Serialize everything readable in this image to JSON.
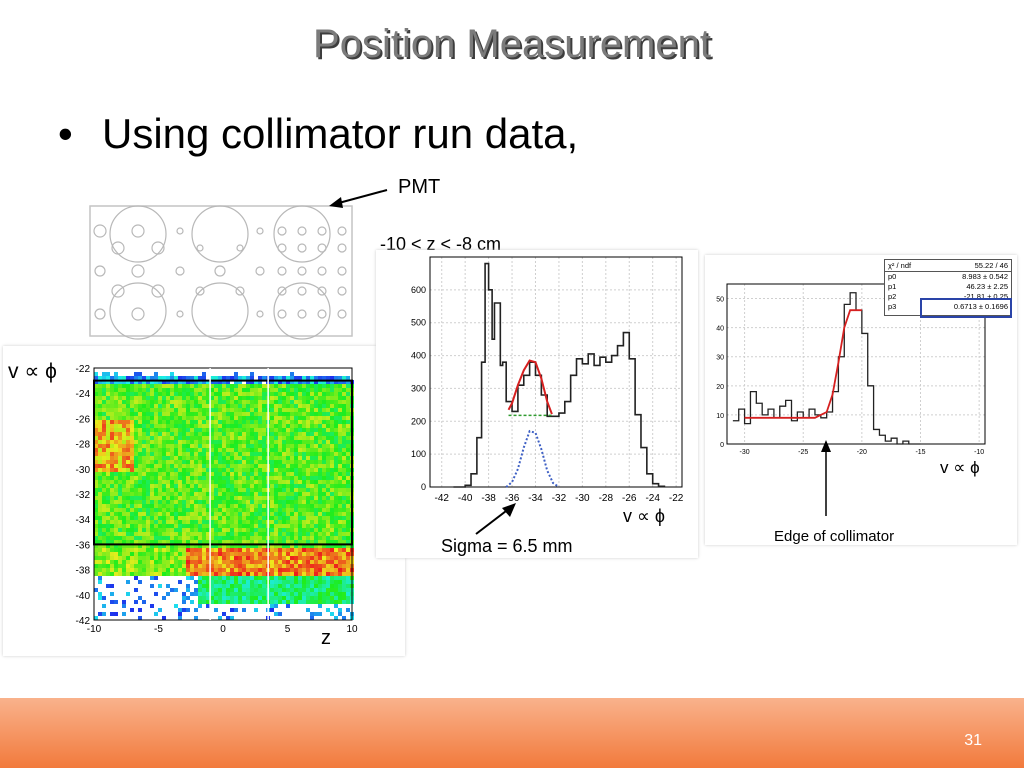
{
  "slide": {
    "title": "Position Measurement",
    "bullet": "Using collimator run data,",
    "page_number": "31"
  },
  "annotations": {
    "pmt_label": "PMT",
    "cut_label": "-10 < z < -8 cm",
    "sigma_label": "Sigma = 6.5 mm",
    "edge_label": "Edge of collimator",
    "v_phi_label": "v ∝ ϕ",
    "z_label": "z"
  },
  "fit_box": {
    "header": [
      "χ² / ndf",
      "55.22 / 46"
    ],
    "rows": [
      [
        "p0",
        "8.983 ± 0.542"
      ],
      [
        "p1",
        "46.23 ± 2.25"
      ],
      [
        "p2",
        "-21.81 ± 0.25"
      ],
      [
        "p3",
        "0.6713 ± 0.1696"
      ]
    ]
  },
  "chart_data": [
    {
      "type": "heatmap",
      "x_ticks": [
        "-10",
        "-5",
        "0",
        "5",
        "10"
      ],
      "y_ticks": [
        "-22",
        "-24",
        "-26",
        "-28",
        "-30",
        "-32",
        "-34",
        "-36",
        "-38",
        "-40",
        "-42"
      ],
      "xlim": [
        -10,
        10
      ],
      "ylim": [
        -42,
        -22
      ],
      "selection_box": {
        "x": [
          -10,
          10
        ],
        "y": [
          -36,
          -23
        ]
      },
      "xlabel": "z",
      "ylabel": "v ∝ ϕ"
    },
    {
      "type": "line",
      "x_ticks": [
        "-42",
        "-40",
        "-38",
        "-36",
        "-34",
        "-32",
        "-30",
        "-28",
        "-26",
        "-24",
        "-22"
      ],
      "y_ticks": [
        "0",
        "100",
        "200",
        "300",
        "400",
        "500",
        "600"
      ],
      "xlim": [
        -43,
        -21.5
      ],
      "ylim": [
        0,
        700
      ],
      "x": [
        -41,
        -40,
        -39.5,
        -39,
        -38.6,
        -38.3,
        -38,
        -37.7,
        -37.5,
        -37,
        -36.8,
        -36.5,
        -36,
        -35.5,
        -35,
        -34.5,
        -34,
        -33.5,
        -33,
        -32.5,
        -32,
        -31.5,
        -31,
        -30.5,
        -30,
        -29.5,
        -29,
        -28.5,
        -28,
        -27.5,
        -27,
        -26.5,
        -26,
        -25.5,
        -25,
        -24.5,
        -24,
        -23.5,
        -23
      ],
      "values": [
        0,
        5,
        40,
        150,
        380,
        680,
        600,
        450,
        560,
        370,
        380,
        260,
        230,
        310,
        340,
        380,
        340,
        280,
        215,
        215,
        225,
        260,
        340,
        390,
        375,
        405,
        370,
        395,
        380,
        400,
        430,
        470,
        390,
        220,
        120,
        40,
        10,
        2,
        0
      ],
      "fit_x": [
        -36.3,
        -36,
        -35.5,
        -35,
        -34.5,
        -34,
        -33.5,
        -33,
        -32.6
      ],
      "fit_values": [
        235,
        255,
        310,
        355,
        385,
        380,
        330,
        260,
        222
      ],
      "gauss_x": [
        -36.5,
        -36,
        -35.5,
        -35,
        -34.5,
        -34,
        -33.5,
        -33,
        -32.5,
        -32
      ],
      "gauss_values": [
        0,
        15,
        55,
        120,
        170,
        165,
        115,
        50,
        12,
        0
      ],
      "baseline_x": [
        -36.3,
        -32.6
      ],
      "baseline_value": 218,
      "xlabel": "v ∝ ϕ"
    },
    {
      "type": "line",
      "x_ticks": [
        "-30",
        "-25",
        "-20",
        "-15",
        "-10"
      ],
      "y_ticks": [
        "0",
        "10",
        "20",
        "30",
        "40",
        "50"
      ],
      "xlim": [
        -31.5,
        -9.5
      ],
      "ylim": [
        0,
        55
      ],
      "x": [
        -31,
        -30.5,
        -30,
        -29.5,
        -29,
        -28.5,
        -28,
        -27.5,
        -27,
        -26.5,
        -26,
        -25.5,
        -25,
        -24.5,
        -24,
        -23.5,
        -23,
        -22.5,
        -22,
        -21.5,
        -21,
        -20.5,
        -20,
        -19.5,
        -19,
        -18.5,
        -18,
        -17.5,
        -17,
        -16.5,
        -16,
        -15.5,
        -15
      ],
      "values": [
        8,
        12,
        7,
        18,
        14,
        10,
        12,
        9,
        13,
        15,
        8,
        11,
        9,
        12,
        10,
        9,
        11,
        18,
        30,
        48,
        52,
        46,
        38,
        20,
        5,
        3,
        1,
        2,
        0,
        1,
        0,
        0,
        0
      ],
      "fit_x": [
        -30,
        -28,
        -26,
        -24,
        -23,
        -22.5,
        -22,
        -21.5,
        -21,
        -20.5,
        -20
      ],
      "fit_values": [
        9,
        9,
        9,
        9,
        11,
        17,
        28,
        40,
        46,
        46,
        46
      ],
      "xlabel": "v ∝ ϕ"
    }
  ]
}
